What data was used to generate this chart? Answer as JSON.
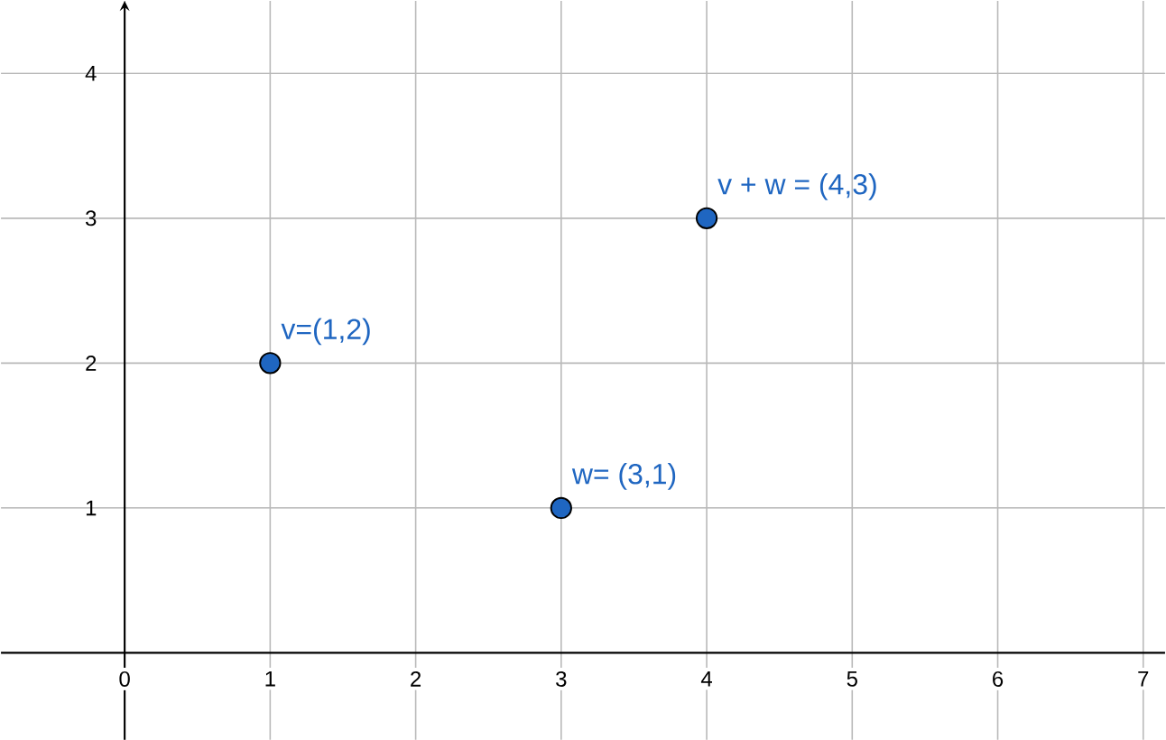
{
  "chart_data": {
    "type": "scatter",
    "xlim": [
      -0.85,
      7.15
    ],
    "ylim": [
      -0.6,
      4.5
    ],
    "xticks": [
      0,
      1,
      2,
      3,
      4,
      5,
      6,
      7
    ],
    "yticks": [
      1,
      2,
      3,
      4
    ],
    "grid": true,
    "series": [
      {
        "color": "#1f66c1",
        "x": [
          1,
          3,
          4
        ],
        "values": [
          2,
          1,
          3
        ]
      }
    ],
    "annotations": [
      {
        "text": "v=(1,2)",
        "x": 1,
        "y": 2
      },
      {
        "text": "w= (3,1)",
        "x": 3,
        "y": 1
      },
      {
        "text": "v + w = (4,3)",
        "x": 4,
        "y": 3
      }
    ]
  }
}
